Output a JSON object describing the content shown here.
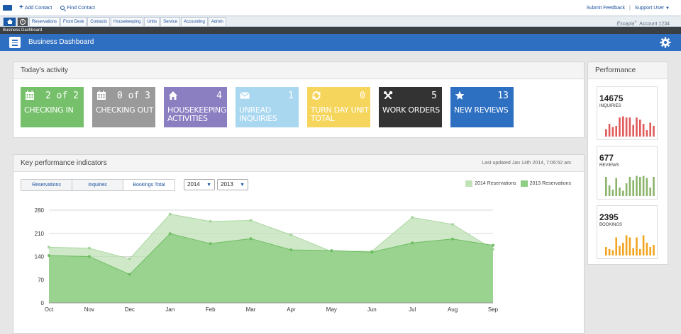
{
  "toolbar": {
    "add_contact": "Add Contact",
    "find_contact": "Find Contact",
    "submit_feedback": "Submit Feedback",
    "separator": "|",
    "support_user": "Support User"
  },
  "nav": {
    "tabs": [
      "Reservations",
      "Front Desk",
      "Contacts",
      "Housekeeping",
      "Units",
      "Service",
      "Accounting",
      "Admin"
    ],
    "brand": "Escapia",
    "account": "Account 1234"
  },
  "breadcrumb": "Business Dashboard",
  "page_title": "Business Dashboard",
  "activity": {
    "title": "Today's activity",
    "tiles": [
      {
        "icon": "calendar-icon",
        "count": "2 of 2",
        "label": "Checking In",
        "color": "#76c06b"
      },
      {
        "icon": "calendar-icon",
        "count": "0 of 3",
        "label": "Checking Out",
        "color": "#9a9a9a"
      },
      {
        "icon": "house-icon",
        "count": "4",
        "label": "Housekeeping Activities",
        "color": "#8b7fc2"
      },
      {
        "icon": "envelope-icon",
        "count": "1",
        "label": "Unread Inquiries",
        "color": "#a9d7f0"
      },
      {
        "icon": "refresh-icon",
        "count": "0",
        "label": "Turn Day Unit Total",
        "color": "#f6d55d"
      },
      {
        "icon": "wrench-icon",
        "count": "5",
        "label": "Work Orders",
        "color": "#333333"
      },
      {
        "icon": "star-icon",
        "count": "13",
        "label": "New Reviews",
        "color": "#2d6fc1"
      }
    ]
  },
  "kpi": {
    "title": "Key performance indicators",
    "updated": "Last updated Jan 14th 2014, 7:06:52 am",
    "segments": [
      "Reservations",
      "Inquiries",
      "Bookings Total"
    ],
    "year_a": "2014",
    "year_b": "2013"
  },
  "chart_data": {
    "type": "area",
    "categories": [
      "Oct",
      "Nov",
      "Dec",
      "Jan",
      "Feb",
      "Mar",
      "Apr",
      "May",
      "Jun",
      "Jul",
      "Aug",
      "Sep"
    ],
    "yticks": [
      "0",
      "70",
      "140",
      "210",
      "280"
    ],
    "ylim": [
      0,
      280
    ],
    "legend_position": "top-right",
    "grid": true,
    "series": [
      {
        "name": "2014 Reservations",
        "color": "#bfe2b6",
        "values": [
          168,
          165,
          133,
          268,
          246,
          249,
          205,
          155,
          156,
          258,
          237,
          162
        ]
      },
      {
        "name": "2013 Reservations",
        "color": "#8fcf85",
        "values": [
          143,
          140,
          86,
          209,
          179,
          194,
          160,
          158,
          153,
          181,
          193,
          174
        ]
      }
    ]
  },
  "performance": {
    "title": "Performance",
    "cards": [
      {
        "value": "14675",
        "label": "INQUIRIES",
        "color": "#e05a5a",
        "bars": [
          0.35,
          0.6,
          0.45,
          0.5,
          0.9,
          0.95,
          0.9,
          0.9,
          0.55,
          0.9,
          0.8,
          0.6,
          0.3,
          0.65,
          0.5
        ]
      },
      {
        "value": "677",
        "label": "REVIEWS",
        "color": "#8ab46a",
        "bars": [
          0.9,
          0.5,
          0.3,
          0.85,
          0.4,
          0.25,
          0.6,
          0.9,
          0.75,
          0.95,
          0.9,
          0.95,
          0.85,
          0.4,
          0.9
        ]
      },
      {
        "value": "2395",
        "label": "BOOKINGS",
        "color": "#f2a41d",
        "bars": [
          0.4,
          0.3,
          0.25,
          0.85,
          0.45,
          0.6,
          0.95,
          0.85,
          0.35,
          0.85,
          0.3,
          0.95,
          0.6,
          0.4,
          0.5
        ]
      }
    ]
  }
}
